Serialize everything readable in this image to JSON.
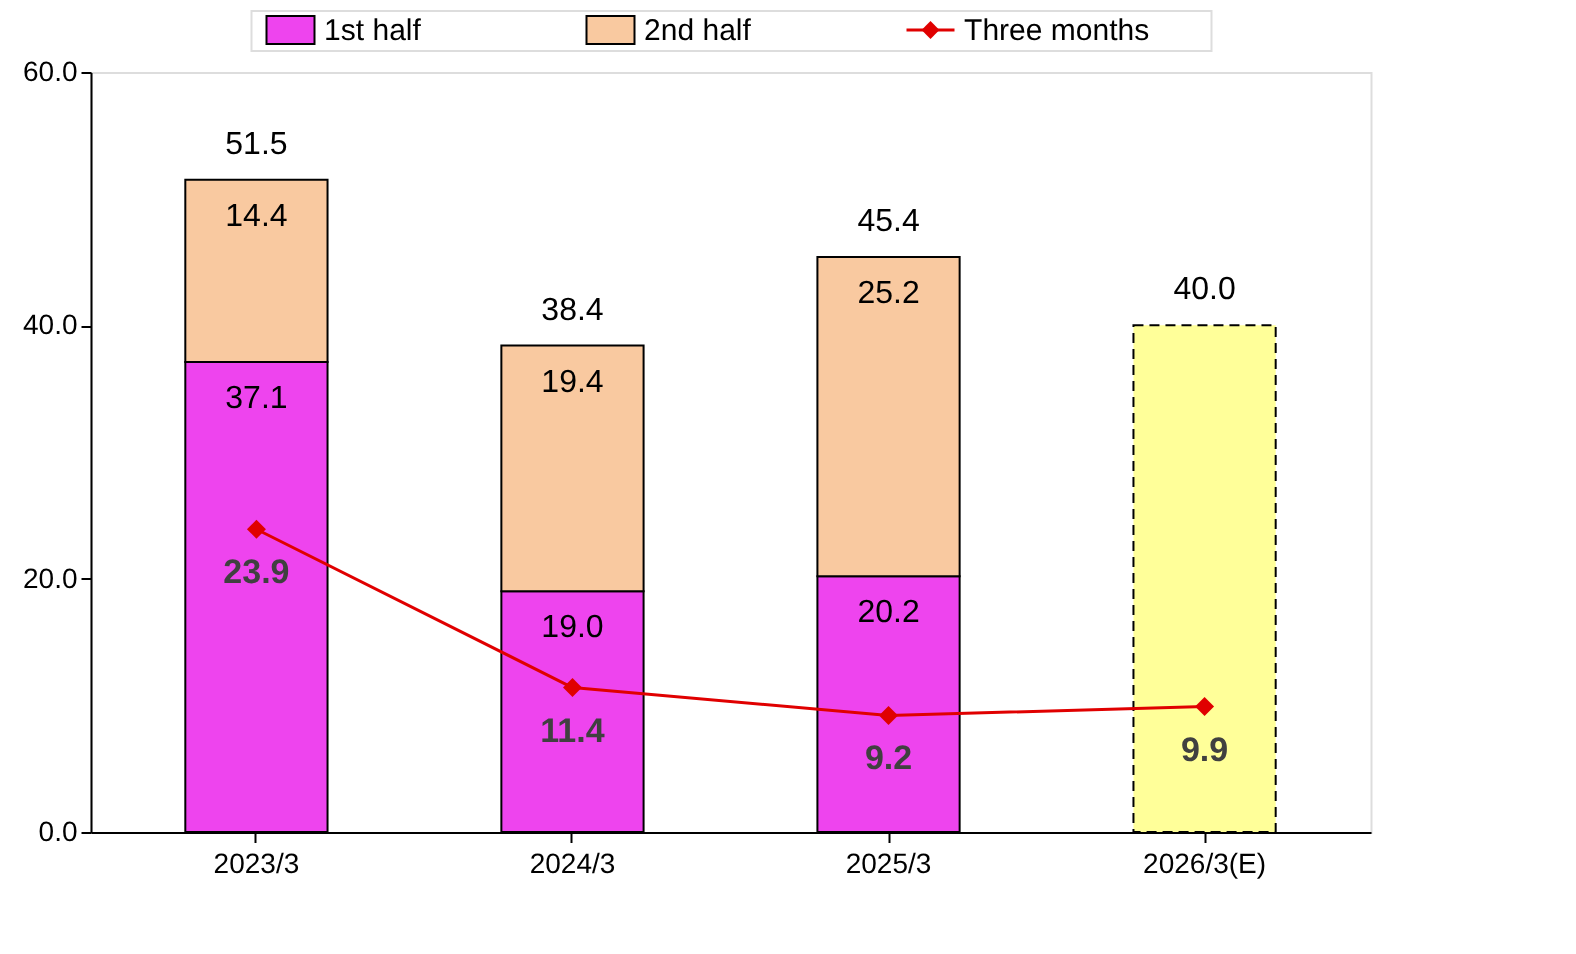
{
  "chart_data": {
    "type": "bar",
    "stacked": true,
    "categories": [
      "2023/3",
      "2024/3",
      "2025/3",
      "2026/3(E)"
    ],
    "series": [
      {
        "name": "1st half",
        "color": "#ee44ee",
        "values": [
          37.1,
          19.0,
          20.2,
          null
        ],
        "value_labels": [
          "37.1",
          "19.0",
          "20.2",
          null
        ]
      },
      {
        "name": "2nd half",
        "color": "#f9c9a0",
        "values": [
          14.4,
          19.4,
          25.2,
          null
        ]
      },
      {
        "color": "#ffff99",
        "values": [
          null,
          null,
          null,
          40.0
        ],
        "line_style": "dashed",
        "value_labels": [
          null,
          null,
          null,
          null
        ]
      },
      {
        "name": "Three months",
        "type": "line",
        "color": "#e00000",
        "values": [
          23.9,
          11.4,
          9.2,
          9.9
        ]
      }
    ],
    "totals": [
      "51.5",
      "38.4",
      "45.4",
      "40.0"
    ],
    "data_labels": true,
    "marker": "diamond",
    "legend": "top",
    "grid": false,
    "ylim": [
      0,
      60
    ],
    "yticks": [
      {
        "value": 0,
        "label": "0.0"
      },
      {
        "value": 20,
        "label": "20.0"
      },
      {
        "value": 40,
        "label": "40.0"
      },
      {
        "value": 60,
        "label": "60.0"
      }
    ]
  }
}
